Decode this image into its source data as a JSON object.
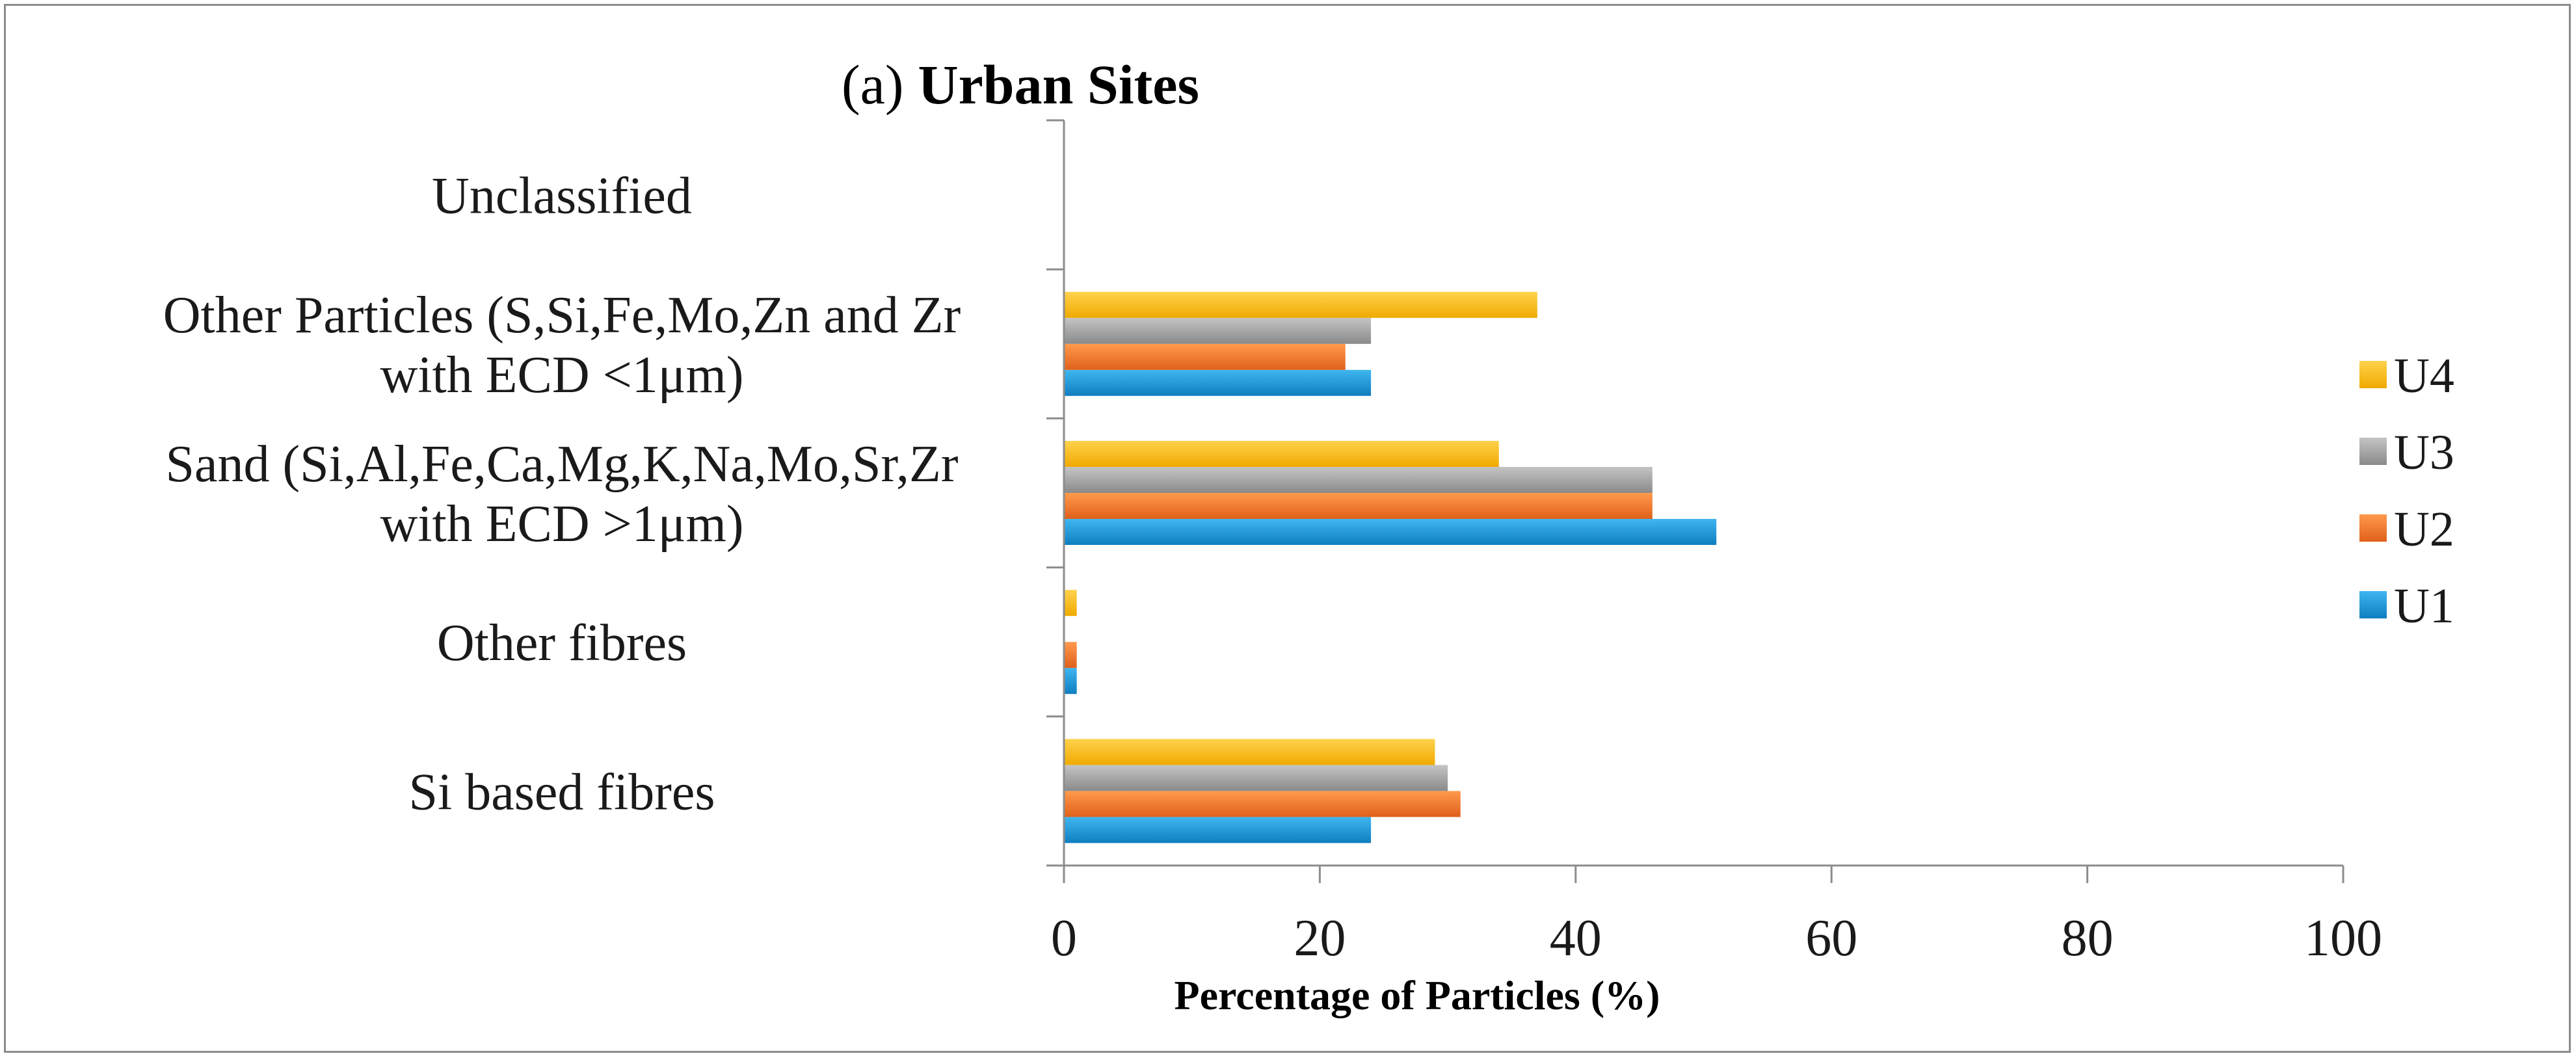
{
  "chart_data": {
    "type": "bar",
    "orientation": "horizontal",
    "title_prefix": "(a)",
    "title_main": "Urban Sites",
    "xlabel": "Percentage of Particles (%)",
    "ylabel": "",
    "xlim": [
      0,
      100
    ],
    "xticks": [
      0,
      20,
      40,
      60,
      80,
      100
    ],
    "grid": false,
    "legend_position": "right",
    "categories": [
      {
        "lines": [
          "Si based fibres"
        ]
      },
      {
        "lines": [
          "Other fibres"
        ]
      },
      {
        "lines": [
          "Sand (Si,Al,Fe,Ca,Mg,K,Na,Mo,Sr,Zr",
          "with ECD >1μm)"
        ]
      },
      {
        "lines": [
          "Other Particles (S,Si,Fe,Mo,Zn and Zr",
          "with ECD <1μm)"
        ]
      },
      {
        "lines": [
          "Unclassified"
        ]
      }
    ],
    "series": [
      {
        "name": "U1",
        "color": "#1E9BDA",
        "values": [
          24,
          1,
          51,
          24,
          0
        ]
      },
      {
        "name": "U2",
        "color": "#F47D2A",
        "values": [
          31,
          1,
          46,
          22,
          0
        ]
      },
      {
        "name": "U3",
        "color": "#A5A5A5",
        "values": [
          30,
          0,
          46,
          24,
          0
        ]
      },
      {
        "name": "U4",
        "color": "#FFC000",
        "values": [
          29,
          1,
          34,
          37,
          0
        ]
      }
    ]
  }
}
